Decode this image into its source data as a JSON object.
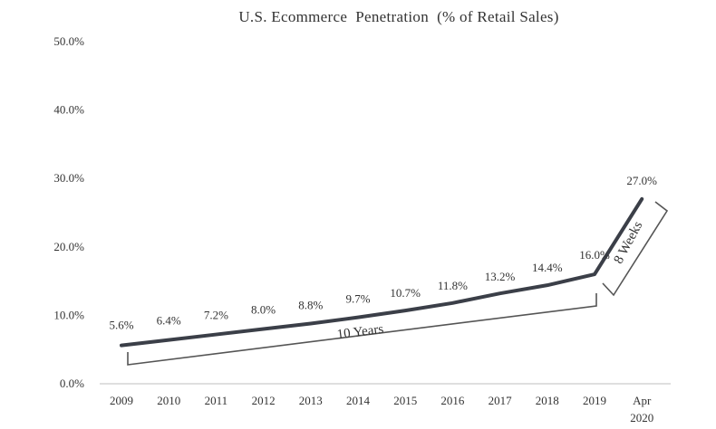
{
  "chart_data": {
    "type": "line",
    "title": "U.S. Ecommerce  Penetration  (% of Retail Sales)",
    "xlabel": "",
    "ylabel": "",
    "categories": [
      "2009",
      "2010",
      "2011",
      "2012",
      "2013",
      "2014",
      "2015",
      "2016",
      "2017",
      "2018",
      "2019",
      "Apr 2020"
    ],
    "category_lines": [
      [
        "2009"
      ],
      [
        "2010"
      ],
      [
        "2011"
      ],
      [
        "2012"
      ],
      [
        "2013"
      ],
      [
        "2014"
      ],
      [
        "2015"
      ],
      [
        "2016"
      ],
      [
        "2017"
      ],
      [
        "2018"
      ],
      [
        "2019"
      ],
      [
        "Apr",
        "2020"
      ]
    ],
    "values": [
      5.6,
      6.4,
      7.2,
      8.0,
      8.8,
      9.7,
      10.7,
      11.8,
      13.2,
      14.4,
      16.0,
      27.0
    ],
    "data_labels": [
      "5.6%",
      "6.4%",
      "7.2%",
      "8.0%",
      "8.8%",
      "9.7%",
      "10.7%",
      "11.8%",
      "13.2%",
      "14.4%",
      "16.0%",
      "27.0%"
    ],
    "ylim": [
      0,
      50
    ],
    "yticks": [
      0,
      10,
      20,
      30,
      40,
      50
    ],
    "ytick_labels": [
      "0.0%",
      "10.0%",
      "20.0%",
      "30.0%",
      "40.0%",
      "50.0%"
    ],
    "grid": false,
    "legend": "none",
    "line_color": "#3b3f48",
    "annotations": [
      {
        "text": "10 Years",
        "from": "2009",
        "to": "2019"
      },
      {
        "text": "8 Weeks",
        "from": "2019",
        "to": "Apr 2020"
      }
    ]
  }
}
